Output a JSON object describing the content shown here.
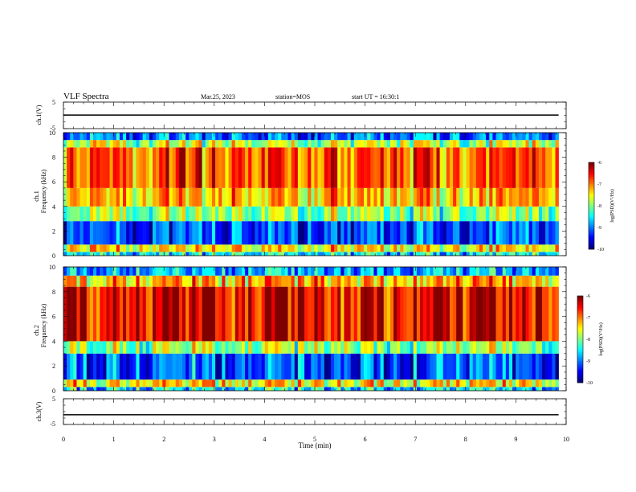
{
  "header": {
    "title": "VLF Spectra",
    "date": "Mar.25, 2023",
    "station": "station=MOS",
    "start_ut": "start UT = 16:30:1"
  },
  "chart_data": [
    {
      "type": "line",
      "panel": "waveform-ch1",
      "ylabel": "ch.1(V)",
      "ylim": [
        -5,
        5
      ],
      "ytick_labels": [
        "5",
        "-5"
      ],
      "xlim": [
        0,
        10
      ],
      "series": [
        {
          "x": [
            0,
            9.85
          ],
          "values": [
            0.1,
            0.1
          ]
        }
      ]
    },
    {
      "type": "heatmap",
      "panel": "spectrogram-ch1",
      "ylabel_line1": "ch.1",
      "ylabel_line2": "Frequency (kHz)",
      "ylim": [
        0,
        10
      ],
      "ytick_labels": [
        "0",
        "2",
        "4",
        "6",
        "8",
        "10"
      ],
      "xlim": [
        0,
        10
      ],
      "data_end_min": 9.85,
      "bands": [
        {
          "f0": 0.0,
          "f1": 0.3,
          "level": -8.6
        },
        {
          "f0": 0.3,
          "f1": 0.9,
          "level": -7.5
        },
        {
          "f0": 0.9,
          "f1": 2.8,
          "level": -9.3
        },
        {
          "f0": 2.8,
          "f1": 4.0,
          "level": -8.0
        },
        {
          "f0": 4.0,
          "f1": 5.5,
          "level": -7.3
        },
        {
          "f0": 5.5,
          "f1": 8.8,
          "level": -6.9
        },
        {
          "f0": 8.8,
          "f1": 9.4,
          "level": -7.8
        },
        {
          "f0": 9.4,
          "f1": 10.0,
          "level": -9.1
        }
      ],
      "colorbar": {
        "min": -10,
        "max": -6,
        "tick_labels": [
          "-6",
          "-7",
          "-8",
          "-9",
          "-10"
        ],
        "label": "log(PSD)(V²/Hz)"
      }
    },
    {
      "type": "heatmap",
      "panel": "spectrogram-ch2",
      "ylabel_line1": "ch.2",
      "ylabel_line2": "Frequency (kHz)",
      "ylim": [
        0,
        10
      ],
      "ytick_labels": [
        "0",
        "2",
        "4",
        "6",
        "8",
        "10"
      ],
      "xlim": [
        0,
        10
      ],
      "data_end_min": 9.85,
      "bands": [
        {
          "f0": 0.0,
          "f1": 0.3,
          "level": -8.6
        },
        {
          "f0": 0.3,
          "f1": 0.9,
          "level": -7.4
        },
        {
          "f0": 0.9,
          "f1": 3.0,
          "level": -9.2
        },
        {
          "f0": 3.0,
          "f1": 4.0,
          "level": -7.9
        },
        {
          "f0": 4.0,
          "f1": 8.4,
          "level": -6.4
        },
        {
          "f0": 8.4,
          "f1": 9.3,
          "level": -7.2
        },
        {
          "f0": 9.3,
          "f1": 10.0,
          "level": -8.8
        }
      ],
      "colorbar": {
        "min": -10,
        "max": -6,
        "tick_labels": [
          "-6",
          "-7",
          "-8",
          "-9",
          "-10"
        ],
        "label": "log(PSD)(V²/Hz)"
      }
    },
    {
      "type": "line",
      "panel": "waveform-ch3",
      "ylabel": "ch.3(V)",
      "ylim": [
        -5,
        5
      ],
      "ytick_labels": [
        "5",
        "-5"
      ],
      "xlim": [
        0,
        10
      ],
      "xlabel": "Time (min)",
      "xtick_labels": [
        "0",
        "1",
        "2",
        "3",
        "4",
        "5",
        "6",
        "7",
        "8",
        "9",
        "10"
      ],
      "series": [
        {
          "x": [
            0,
            9.85
          ],
          "values": [
            -1.2,
            -1.2
          ]
        }
      ]
    }
  ]
}
